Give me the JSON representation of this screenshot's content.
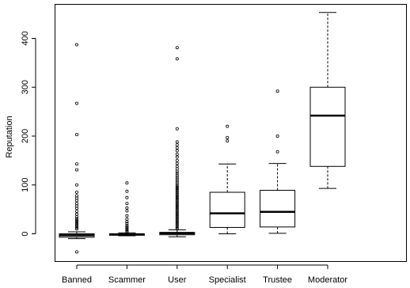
{
  "chart_data": {
    "type": "boxplot",
    "title": "",
    "xlabel": "",
    "ylabel": "Reputation",
    "ylim": [
      -50,
      470
    ],
    "y_ticks": [
      0,
      100,
      200,
      300,
      400
    ],
    "categories": [
      "Banned",
      "Scammer",
      "User",
      "Specialist",
      "Trustee",
      "Moderator"
    ],
    "boxes": [
      {
        "name": "Banned",
        "whisker_low": -10,
        "q1": -7,
        "median": -3,
        "q3": 0,
        "whisker_high": 4,
        "outliers": [
          -37,
          10,
          13,
          16,
          19,
          22,
          25,
          28,
          31,
          35,
          40,
          46,
          52,
          57,
          62,
          68,
          73,
          78,
          85,
          100,
          131,
          143,
          203,
          267,
          387
        ]
      },
      {
        "name": "Scammer",
        "whisker_low": -4,
        "q1": -3,
        "median": -1,
        "q3": 0,
        "whisker_high": 2,
        "outliers": [
          3,
          5,
          8,
          11,
          14,
          17,
          21,
          25,
          30,
          37,
          47,
          53,
          62,
          74,
          87,
          104
        ]
      },
      {
        "name": "User",
        "whisker_low": -6,
        "q1": -2,
        "median": 1,
        "q3": 3,
        "whisker_high": 8,
        "outliers": [
          10,
          13,
          16,
          19,
          22,
          25,
          28,
          31,
          34,
          37,
          40,
          43,
          46,
          49,
          52,
          55,
          58,
          61,
          64,
          67,
          70,
          73,
          76,
          79,
          82,
          85,
          88,
          91,
          94,
          97,
          100,
          104,
          108,
          112,
          116,
          120,
          124,
          128,
          133,
          138,
          144,
          150,
          157,
          163,
          170,
          176,
          182,
          188,
          215,
          358,
          381
        ]
      },
      {
        "name": "Specialist",
        "whisker_low": 0,
        "q1": 13,
        "median": 42,
        "q3": 85,
        "whisker_high": 143,
        "outliers": [
          190,
          197,
          220
        ]
      },
      {
        "name": "Trustee",
        "whisker_low": 1,
        "q1": 14,
        "median": 45,
        "q3": 89,
        "whisker_high": 144,
        "outliers": [
          168,
          200,
          292
        ]
      },
      {
        "name": "Moderator",
        "whisker_low": 93,
        "q1": 138,
        "median": 242,
        "q3": 300,
        "whisker_high": 453,
        "outliers": []
      }
    ],
    "grid": false,
    "legend": "none"
  }
}
